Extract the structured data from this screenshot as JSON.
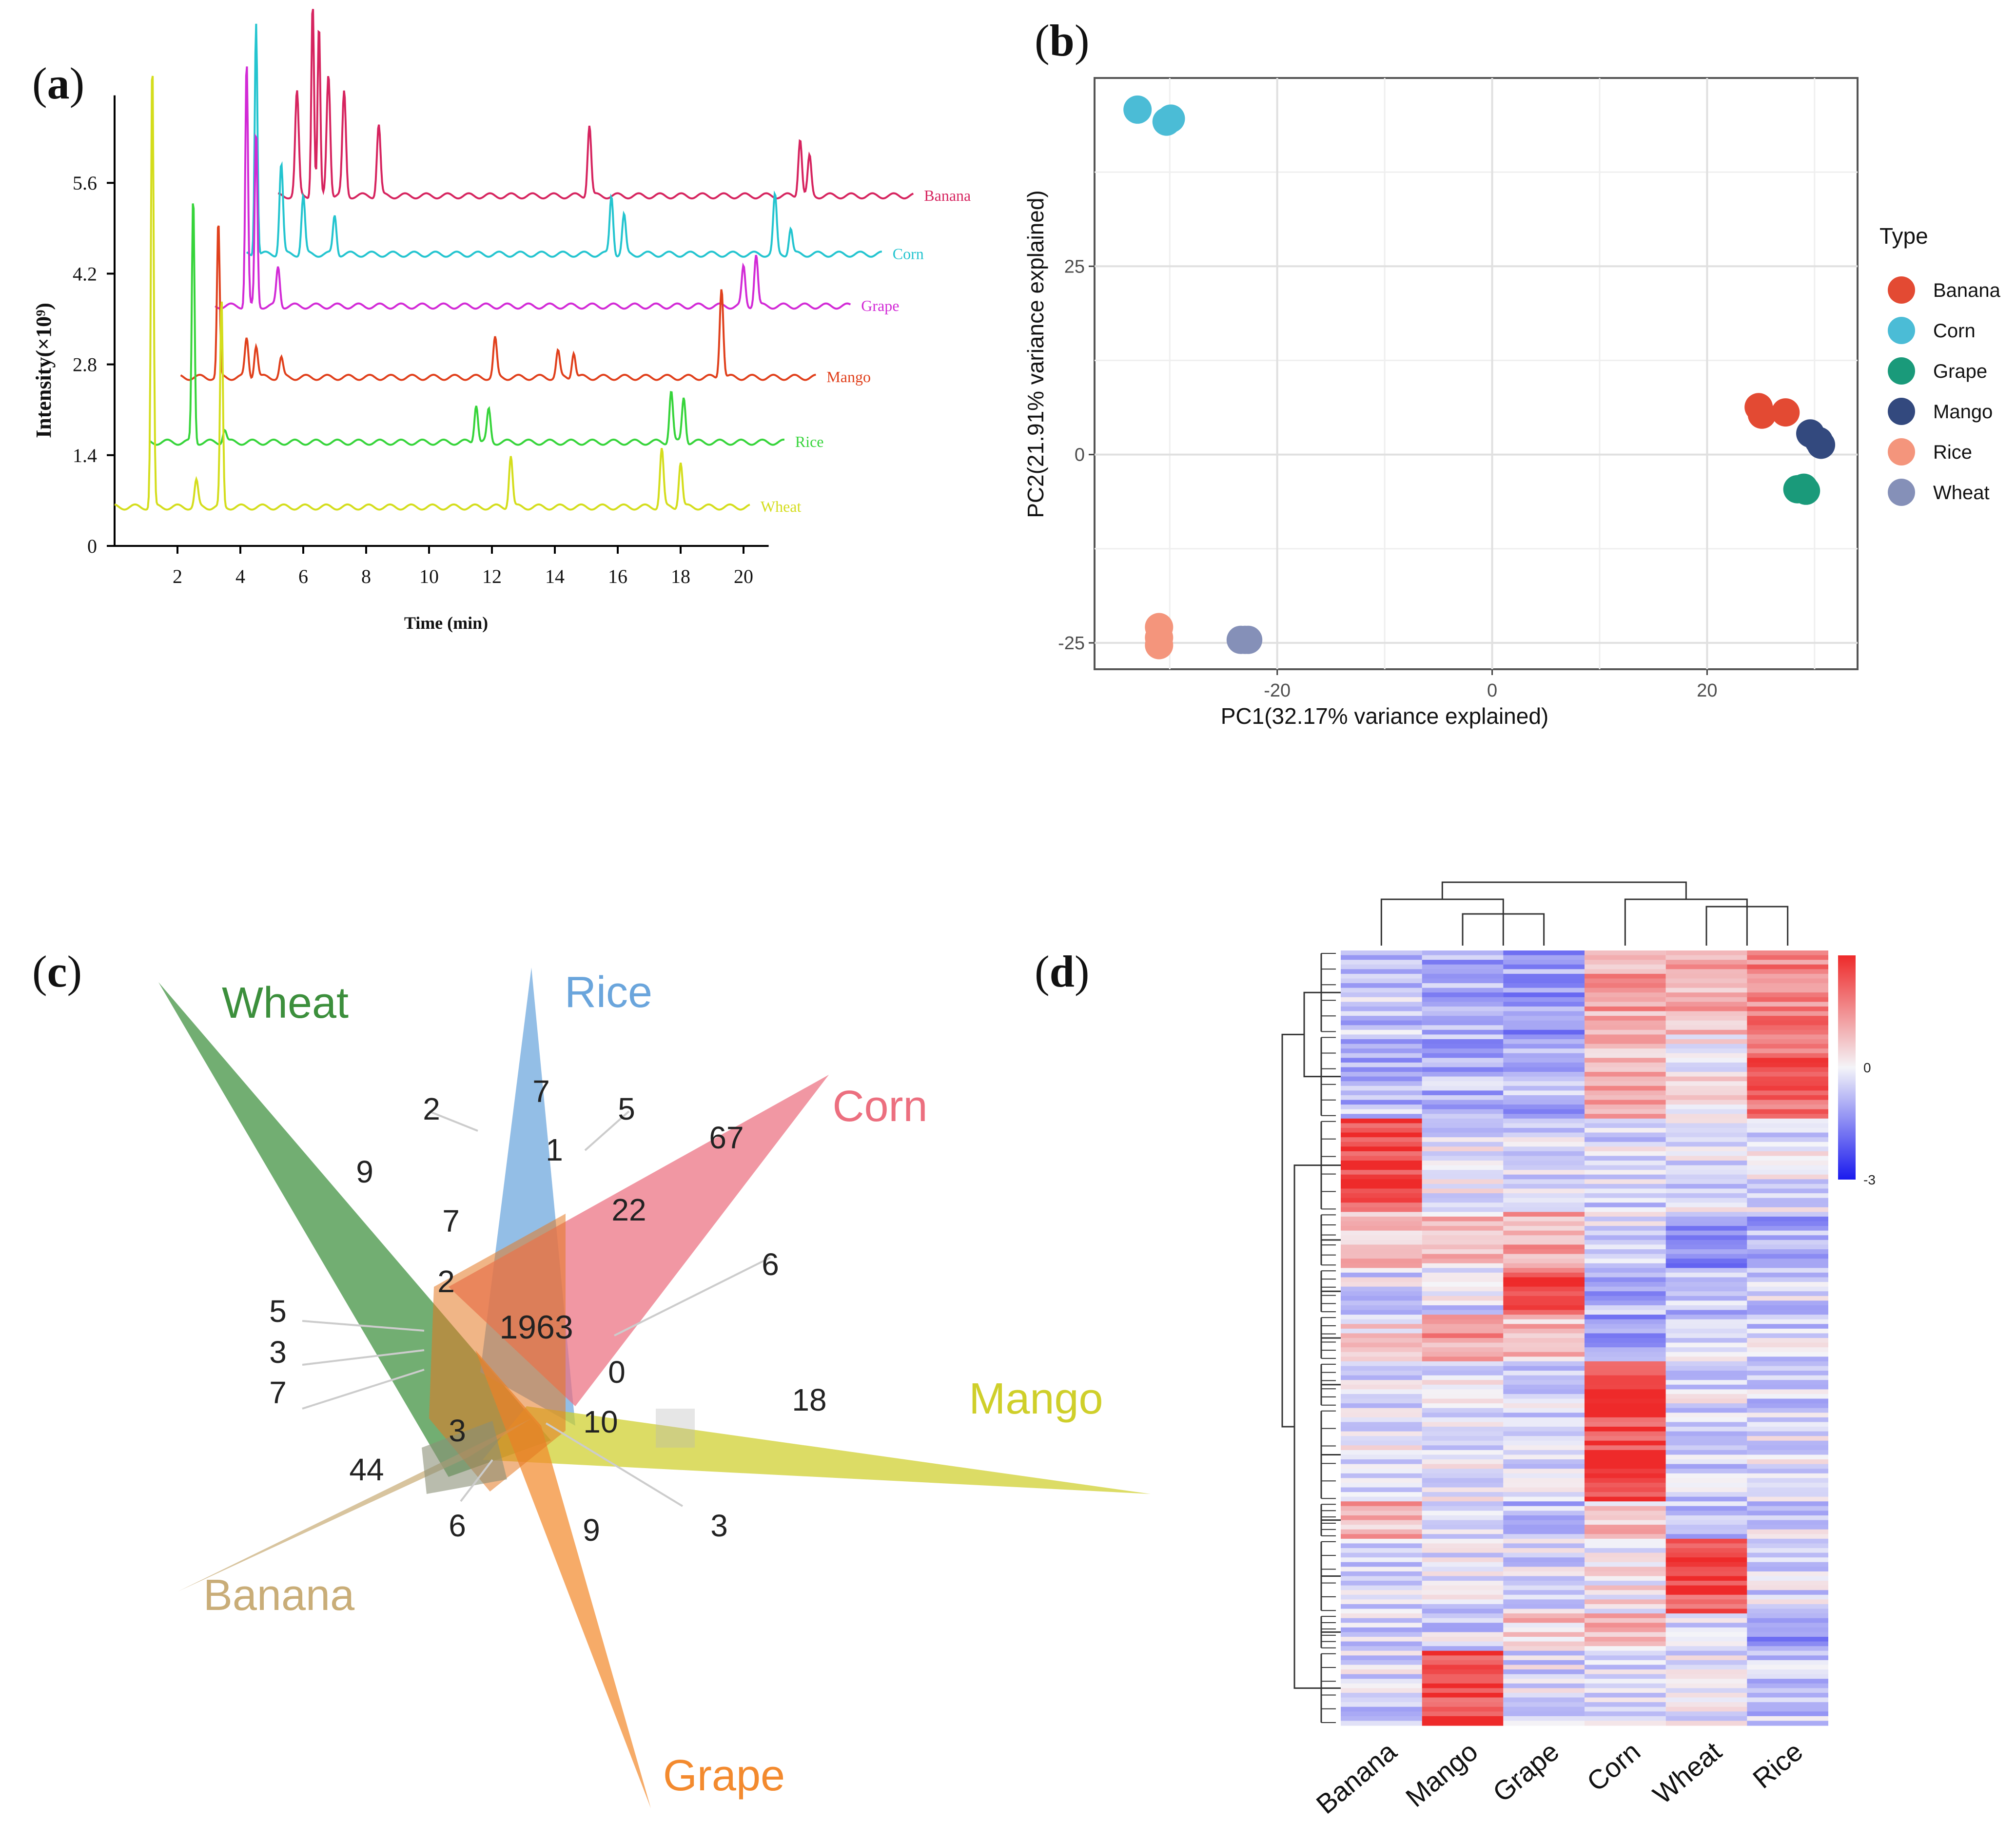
{
  "panels": {
    "a": "a",
    "b": "b",
    "c": "c",
    "d": "d"
  },
  "chart_data": [
    {
      "panel": "a",
      "type": "line",
      "title": "",
      "xlabel": "Time (min)",
      "ylabel": "Intensity(×10⁹)",
      "xlim": [
        0,
        20.8
      ],
      "ylim": [
        0,
        7
      ],
      "xticks": [
        2,
        4,
        6,
        8,
        10,
        12,
        14,
        16,
        18,
        20
      ],
      "yticks": [
        0,
        1.4,
        2.8,
        4.2,
        5.6
      ],
      "ytick_labels": [
        "0",
        "1.4",
        "2.8",
        "4.2",
        "5.6"
      ],
      "series": [
        {
          "name": "Banana",
          "color": "#d6245f",
          "baseline": 5.4,
          "x_offset": 5.2,
          "peaks": [
            [
              0.6,
              1.6
            ],
            [
              1.1,
              3.0
            ],
            [
              1.3,
              2.6
            ],
            [
              1.6,
              1.9
            ],
            [
              2.1,
              1.6
            ],
            [
              3.2,
              1.1
            ],
            [
              9.9,
              1.1
            ],
            [
              16.6,
              0.9
            ],
            [
              16.9,
              0.6
            ]
          ]
        },
        {
          "name": "Corn",
          "color": "#23c4cf",
          "baseline": 4.5,
          "x_offset": 4.2,
          "peaks": [
            [
              0.3,
              3.6
            ],
            [
              1.1,
              1.4
            ],
            [
              1.8,
              0.9
            ],
            [
              2.8,
              0.6
            ],
            [
              11.6,
              0.9
            ],
            [
              12.0,
              0.6
            ],
            [
              16.8,
              0.9
            ],
            [
              17.3,
              0.4
            ]
          ]
        },
        {
          "name": "Grape",
          "color": "#d22ad6",
          "baseline": 3.7,
          "x_offset": 3.2,
          "peaks": [
            [
              1.0,
              3.8
            ],
            [
              1.3,
              2.7
            ],
            [
              2.0,
              0.6
            ],
            [
              16.8,
              0.6
            ],
            [
              17.2,
              0.8
            ]
          ]
        },
        {
          "name": "Mango",
          "color": "#e0401c",
          "baseline": 2.6,
          "x_offset": 2.1,
          "peaks": [
            [
              1.2,
              2.4
            ],
            [
              2.1,
              0.6
            ],
            [
              2.4,
              0.5
            ],
            [
              3.2,
              0.3
            ],
            [
              10.0,
              0.6
            ],
            [
              12.0,
              0.4
            ],
            [
              12.5,
              0.4
            ],
            [
              17.2,
              1.4
            ]
          ]
        },
        {
          "name": "Rice",
          "color": "#36d43a",
          "baseline": 1.6,
          "x_offset": 1.1,
          "peaks": [
            [
              1.4,
              3.8
            ],
            [
              2.4,
              0.2
            ],
            [
              10.4,
              0.6
            ],
            [
              10.8,
              0.5
            ],
            [
              16.6,
              0.8
            ],
            [
              17.0,
              0.7
            ]
          ]
        },
        {
          "name": "Wheat",
          "color": "#d4dd1c",
          "baseline": 0.6,
          "x_offset": 0.0,
          "peaks": [
            [
              1.2,
              6.9
            ],
            [
              2.6,
              0.4
            ],
            [
              3.4,
              3.2
            ],
            [
              12.6,
              0.8
            ],
            [
              17.4,
              0.9
            ],
            [
              18.0,
              0.7
            ]
          ]
        }
      ]
    },
    {
      "panel": "b",
      "type": "scatter",
      "title": "",
      "xlabel": "PC1(32.17% variance explained)",
      "ylabel": "PC2(21.91% variance explained)",
      "xlim": [
        -37,
        34
      ],
      "ylim": [
        -28.5,
        50
      ],
      "xticks": [
        -20,
        0,
        20
      ],
      "yticks": [
        -25,
        0,
        25
      ],
      "xtick_labels": [
        "-20",
        "0",
        "20"
      ],
      "ytick_labels": [
        "-25",
        "0",
        "25"
      ],
      "grid": true,
      "legend_title": "Type",
      "legend_position": "right",
      "series": [
        {
          "name": "Banana",
          "color": "#e34a33",
          "points": [
            [
              24.8,
              6.3
            ],
            [
              25.1,
              5.3
            ],
            [
              27.3,
              5.6
            ]
          ]
        },
        {
          "name": "Corn",
          "color": "#4bbcd6",
          "points": [
            [
              -33.0,
              45.8
            ],
            [
              -29.9,
              44.6
            ],
            [
              -30.3,
              44.2
            ]
          ]
        },
        {
          "name": "Grape",
          "color": "#1a9a7a",
          "points": [
            [
              28.4,
              -4.6
            ],
            [
              29.0,
              -4.4
            ],
            [
              29.2,
              -4.8
            ]
          ]
        },
        {
          "name": "Mango",
          "color": "#33497e",
          "points": [
            [
              29.6,
              2.8
            ],
            [
              30.4,
              1.8
            ],
            [
              30.6,
              1.3
            ]
          ]
        },
        {
          "name": "Rice",
          "color": "#f4957c",
          "points": [
            [
              -31.0,
              -22.9
            ],
            [
              -31.0,
              -24.3
            ],
            [
              -31.0,
              -25.3
            ]
          ]
        },
        {
          "name": "Wheat",
          "color": "#8590b8",
          "points": [
            [
              -23.4,
              -24.6
            ],
            [
              -23.0,
              -24.6
            ],
            [
              -22.7,
              -24.6
            ]
          ]
        }
      ]
    },
    {
      "panel": "c",
      "type": "venn",
      "title": "",
      "sets": [
        {
          "name": "Wheat",
          "color": "#3c8f3c"
        },
        {
          "name": "Rice",
          "color": "#6aa5dc"
        },
        {
          "name": "Corn",
          "color": "#ec6f7f"
        },
        {
          "name": "Mango",
          "color": "#cfcf2a"
        },
        {
          "name": "Grape",
          "color": "#f38a2e"
        },
        {
          "name": "Banana",
          "color": "#c9ad78"
        }
      ],
      "numbers": [
        "9",
        "2",
        "7",
        "5",
        "1",
        "67",
        "7",
        "22",
        "6",
        "2",
        "5",
        "3",
        "7",
        "1963",
        "0",
        "18",
        "3",
        "10",
        "44",
        "6",
        "9",
        "3"
      ]
    },
    {
      "panel": "d",
      "type": "heatmap",
      "title": "",
      "columns": [
        "Banana",
        "Mango",
        "Grape",
        "Corn",
        "Wheat",
        "Rice"
      ],
      "colorbar_ticks": [
        "0",
        "-3"
      ],
      "color_low": "#1a1aee",
      "color_mid": "#f4f4f8",
      "color_high": "#ee2a2a",
      "row_blocks": [
        {
          "rows": 18,
          "values": [
            -0.6,
            -1.0,
            -1.2,
            1.2,
            1.0,
            1.6
          ]
        },
        {
          "rows": 18,
          "values": [
            -0.8,
            -0.9,
            -0.9,
            0.9,
            0.2,
            2.2
          ]
        },
        {
          "rows": 20,
          "values": [
            2.6,
            -0.2,
            -0.3,
            -0.3,
            -0.3,
            -0.2
          ]
        },
        {
          "rows": 12,
          "values": [
            0.9,
            0.8,
            1.2,
            -0.4,
            -1.2,
            -1.0
          ]
        },
        {
          "rows": 10,
          "values": [
            -0.3,
            -0.3,
            2.4,
            -1.0,
            -0.6,
            -0.4
          ]
        },
        {
          "rows": 10,
          "values": [
            0.3,
            1.4,
            0.9,
            -1.2,
            -0.5,
            -0.4
          ]
        },
        {
          "rows": 10,
          "values": [
            -0.3,
            -0.2,
            -0.5,
            2.6,
            -0.3,
            -0.4
          ]
        },
        {
          "rows": 20,
          "values": [
            -0.2,
            -0.2,
            -0.4,
            2.6,
            -0.4,
            -0.3
          ]
        },
        {
          "rows": 8,
          "values": [
            1.0,
            -0.2,
            -0.8,
            0.6,
            -0.6,
            -0.4
          ]
        },
        {
          "rows": 16,
          "values": [
            -0.3,
            -0.3,
            -0.4,
            0.2,
            2.5,
            -0.3
          ]
        },
        {
          "rows": 8,
          "values": [
            -0.5,
            -0.4,
            0.6,
            0.8,
            -0.5,
            -1.4
          ]
        },
        {
          "rows": 16,
          "values": [
            -0.4,
            2.6,
            -0.3,
            -0.3,
            -0.3,
            -0.6
          ]
        }
      ]
    }
  ]
}
